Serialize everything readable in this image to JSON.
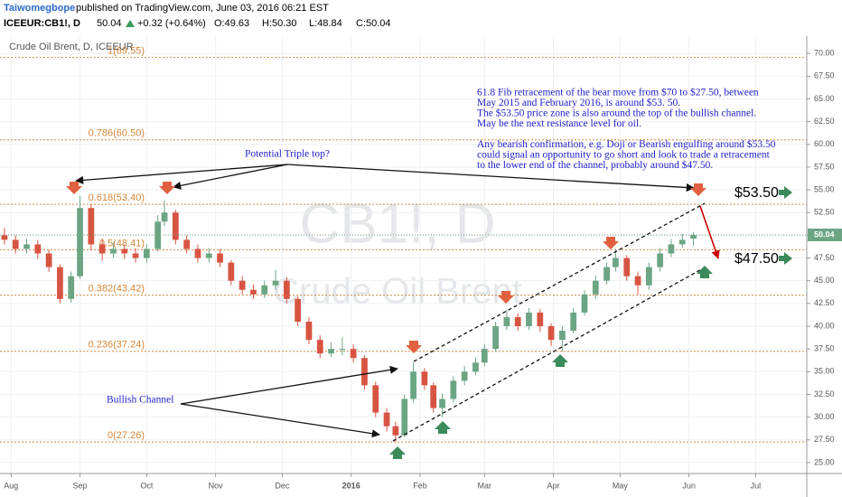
{
  "header": {
    "author": "Taiwomegbope",
    "byline": "published on TradingView.com, June 03, 2016 06:21 EST",
    "symbol": "ICEEUR:CB1!, D",
    "last": "50.04",
    "change": "+0.32 (+0.64%)",
    "open": "O:49.63",
    "high": "H:50.30",
    "low": "L:48.84",
    "close": "C:50.04"
  },
  "chart_data": {
    "type": "candlestick",
    "title": "Crude Oil Brent, D, ICEEUR",
    "watermark": [
      "CB1!, D",
      "Crude Oil Brent"
    ],
    "x": [
      -3,
      2,
      7,
      12,
      17,
      22,
      27,
      31,
      36,
      41,
      46,
      51,
      56,
      61,
      66,
      69,
      74,
      79,
      84,
      89,
      94,
      99,
      104,
      109,
      114,
      119,
      124,
      129,
      134,
      139,
      144,
      149,
      154,
      159,
      164,
      169,
      173,
      177,
      181,
      186,
      190,
      194,
      199,
      204,
      209,
      213,
      218,
      223,
      228,
      233,
      238,
      243,
      248,
      253,
      258,
      263,
      268,
      272,
      277,
      282,
      287,
      292,
      297,
      302,
      307
    ],
    "open": [
      50.0,
      49.5,
      48.5,
      49.0,
      48.0,
      46.5,
      43.0,
      45.5,
      53.0,
      49.0,
      48.0,
      48.5,
      48.0,
      47.5,
      48.5,
      51.5,
      52.5,
      49.5,
      48.5,
      47.5,
      48.0,
      47.0,
      45.0,
      44.0,
      43.5,
      44.5,
      45.0,
      43.0,
      40.5,
      38.5,
      37.0,
      37.5,
      37.5,
      36.5,
      33.5,
      30.5,
      29.0,
      28.0,
      32.0,
      35.0,
      33.5,
      31.0,
      32.0,
      34.0,
      35.0,
      36.0,
      37.5,
      40.0,
      41.0,
      40.0,
      41.5,
      40.0,
      38.5,
      39.5,
      41.5,
      43.5,
      45.0,
      46.5,
      47.5,
      45.5,
      44.5,
      46.5,
      48.0,
      49.0,
      49.63
    ],
    "high": [
      50.8,
      50.0,
      49.6,
      49.5,
      48.4,
      46.8,
      46.0,
      54.3,
      53.4,
      49.6,
      49.2,
      49.0,
      48.6,
      49.0,
      52.2,
      53.8,
      52.8,
      50.0,
      49.0,
      48.6,
      48.5,
      47.3,
      45.5,
      44.6,
      45.0,
      46.2,
      45.4,
      43.3,
      41.0,
      39.0,
      38.2,
      38.8,
      38.0,
      36.8,
      33.9,
      31.0,
      29.5,
      32.5,
      36.0,
      35.4,
      33.8,
      32.6,
      34.5,
      35.6,
      36.6,
      38.0,
      40.5,
      41.8,
      41.4,
      42.0,
      41.9,
      40.3,
      40.0,
      42.0,
      44.0,
      45.6,
      47.0,
      48.5,
      47.8,
      46.0,
      47.0,
      48.6,
      49.6,
      50.2,
      50.3
    ],
    "low": [
      49.0,
      48.0,
      48.0,
      47.4,
      46.0,
      42.5,
      42.6,
      45.2,
      48.3,
      47.2,
      47.5,
      47.4,
      47.0,
      47.0,
      48.2,
      51.0,
      49.0,
      48.0,
      47.0,
      47.0,
      46.5,
      44.5,
      43.5,
      43.0,
      43.1,
      44.0,
      42.5,
      40.0,
      38.0,
      36.5,
      36.6,
      36.8,
      36.0,
      33.0,
      30.0,
      28.4,
      27.3,
      27.8,
      31.6,
      33.0,
      30.5,
      30.0,
      31.6,
      33.5,
      34.6,
      35.6,
      37.2,
      39.6,
      39.5,
      39.6,
      39.4,
      37.8,
      37.2,
      39.2,
      41.2,
      43.0,
      44.6,
      46.0,
      45.0,
      43.5,
      44.0,
      46.0,
      47.6,
      48.6,
      48.84
    ],
    "close": [
      49.5,
      48.5,
      49.0,
      48.0,
      46.5,
      43.0,
      45.5,
      53.0,
      49.0,
      48.0,
      48.5,
      48.0,
      47.5,
      48.5,
      51.5,
      52.5,
      49.5,
      48.5,
      47.5,
      48.0,
      47.0,
      45.0,
      44.0,
      43.5,
      44.5,
      45.0,
      43.0,
      40.5,
      38.5,
      37.0,
      37.5,
      37.5,
      36.5,
      33.5,
      30.5,
      29.0,
      28.0,
      32.0,
      35.0,
      33.5,
      31.0,
      32.0,
      34.0,
      35.0,
      36.0,
      37.5,
      40.0,
      41.0,
      40.0,
      41.5,
      40.0,
      38.5,
      39.5,
      41.5,
      43.5,
      45.0,
      46.5,
      47.5,
      45.5,
      44.5,
      46.5,
      48.0,
      49.0,
      49.5,
      50.04
    ],
    "up_color": "#6ba583",
    "down_color": "#d75442",
    "last_price": 50.04,
    "xlim": [
      -5,
      358
    ],
    "xticks": [
      {
        "value": 0,
        "label": "Aug"
      },
      {
        "value": 31,
        "label": "Sep"
      },
      {
        "value": 61,
        "label": "Oct"
      },
      {
        "value": 92,
        "label": "Nov"
      },
      {
        "value": 122,
        "label": "Dec"
      },
      {
        "value": 153,
        "label": "2016"
      },
      {
        "value": 184,
        "label": "Feb"
      },
      {
        "value": 213,
        "label": "Mar"
      },
      {
        "value": 244,
        "label": "Apr"
      },
      {
        "value": 274,
        "label": "May"
      },
      {
        "value": 305,
        "label": "Jun"
      },
      {
        "value": 335,
        "label": "Jul"
      }
    ],
    "ylim": [
      23.8,
      71.9
    ],
    "yticks": [
      {
        "value": 25,
        "label": "25.00"
      },
      {
        "value": 27.5,
        "label": "27.50"
      },
      {
        "value": 30,
        "label": "30.00"
      },
      {
        "value": 32.5,
        "label": "32.50"
      },
      {
        "value": 35,
        "label": "35.00"
      },
      {
        "value": 37.5,
        "label": "37.50"
      },
      {
        "value": 40,
        "label": "40.00"
      },
      {
        "value": 42.5,
        "label": "42.50"
      },
      {
        "value": 45,
        "label": "45.00"
      },
      {
        "value": 47.5,
        "label": "47.50"
      },
      {
        "value": 50,
        "label": "50.00"
      },
      {
        "value": 52.5,
        "label": "52.50"
      },
      {
        "value": 55,
        "label": "55.00"
      },
      {
        "value": 57.5,
        "label": "57.50"
      },
      {
        "value": 60,
        "label": "60.00"
      },
      {
        "value": 62.5,
        "label": "62.50"
      },
      {
        "value": 65,
        "label": "65.00"
      },
      {
        "value": 67.5,
        "label": "67.50"
      },
      {
        "value": 70,
        "label": "70.00"
      }
    ],
    "grid": true,
    "fib_levels": [
      {
        "value": 69.55,
        "label": "1(69.55)"
      },
      {
        "value": 60.5,
        "label": "0.786(60.50)"
      },
      {
        "value": 53.4,
        "label": "0.618(53.40)"
      },
      {
        "value": 48.41,
        "label": "0.5(48.41)"
      },
      {
        "value": 43.42,
        "label": "0.382(43.42)"
      },
      {
        "value": 37.24,
        "label": "0.236(37.24)"
      },
      {
        "value": 27.26,
        "label": "0(27.26)"
      }
    ],
    "fib_color": "#d4883a",
    "annotations": {
      "note": [
        [
          "61.8 Fib retracement of the bear move from $70 to $27.50, between",
          "May 2015 and February 2016, is around $53. 50.",
          "The $53.50 price zone is also around the top of the bullish channel.",
          "May be the next resistance level for oil."
        ],
        [
          "Any bearish confirmation, e.g. Doji or Bearish engulfing around $53.50",
          "could signal an opportunity to go short and look to trade a retracement",
          "to the lower end of the channel, probably around $47.50."
        ]
      ],
      "triple_top": "Potential Triple top?",
      "channel": "Bullish Channel",
      "target_high": "$53.50",
      "target_low": "$47.50"
    }
  }
}
